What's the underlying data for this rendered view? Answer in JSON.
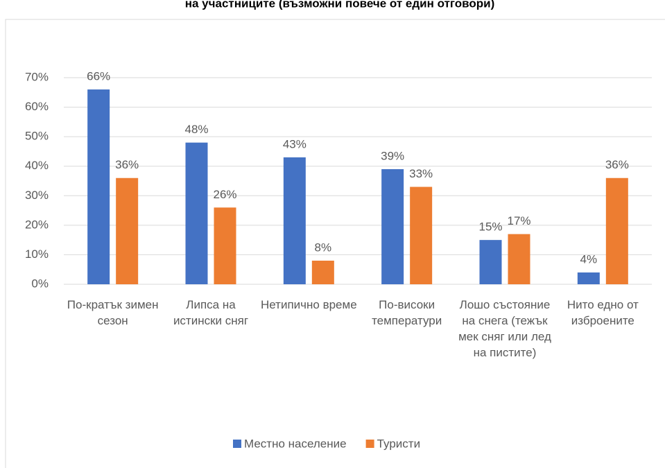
{
  "chart_data": {
    "type": "bar",
    "title": "на участниците (възможни повече от един отговори)",
    "categories": [
      "По-кратък зимен сезон",
      "Липса на истински сняг",
      "Нетипично време",
      "По-високи температури",
      "Лошо състояние на снега (тежък мек сняг или лед на пистите)",
      "Нито едно от изброените"
    ],
    "series": [
      {
        "name": "Местно население",
        "color": "#4472c4",
        "values": [
          66,
          48,
          43,
          39,
          15,
          4
        ],
        "value_labels": [
          "66%",
          "48%",
          "43%",
          "39%",
          "15%",
          "4%"
        ]
      },
      {
        "name": "Туристи",
        "color": "#ed7d31",
        "values": [
          36,
          26,
          8,
          33,
          17,
          36
        ],
        "value_labels": [
          "36%",
          "26%",
          "8%",
          "33%",
          "17%",
          "36%"
        ]
      }
    ],
    "ylim": [
      0,
      70
    ],
    "yticks": [
      {
        "value": 0,
        "label": "0%"
      },
      {
        "value": 10,
        "label": "10%"
      },
      {
        "value": 20,
        "label": "20%"
      },
      {
        "value": 30,
        "label": "30%"
      },
      {
        "value": 40,
        "label": "40%"
      },
      {
        "value": 50,
        "label": "50%"
      },
      {
        "value": 60,
        "label": "60%"
      },
      {
        "value": 70,
        "label": "70%"
      }
    ],
    "grid": true,
    "legend": "bottom"
  }
}
